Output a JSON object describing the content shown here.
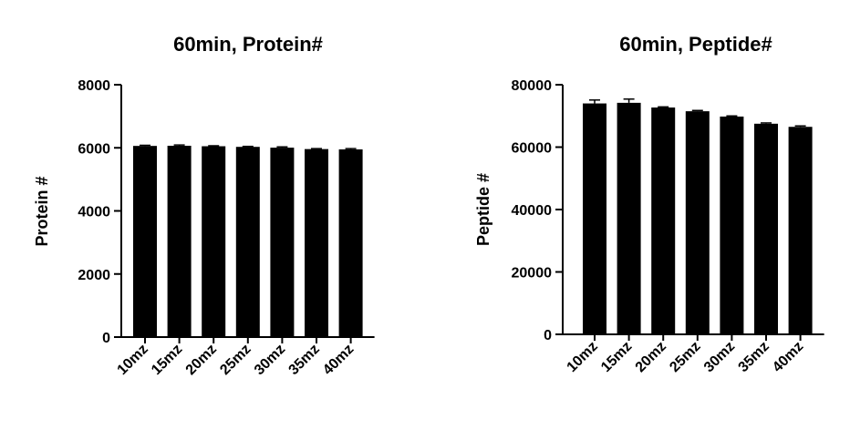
{
  "chart_data": [
    {
      "type": "bar",
      "title": "60min,  Protein#",
      "xlabel": "",
      "ylabel": "Protein #",
      "ylim": [
        0,
        8000
      ],
      "yticks": [
        0,
        2000,
        4000,
        6000,
        8000
      ],
      "categories": [
        "10mz",
        "15mz",
        "20mz",
        "25mz",
        "30mz",
        "35mz",
        "40mz"
      ],
      "values": [
        6060,
        6065,
        6050,
        6030,
        6005,
        5960,
        5950
      ],
      "errors": [
        20,
        25,
        15,
        15,
        25,
        15,
        25
      ],
      "bar_color": "#000000",
      "grid": false,
      "legend": "none"
    },
    {
      "type": "bar",
      "title": "60min,  Peptide#",
      "xlabel": "",
      "ylabel": "Peptide #",
      "ylim": [
        0,
        80000
      ],
      "yticks": [
        0,
        20000,
        40000,
        60000,
        80000
      ],
      "categories": [
        "10mz",
        "15mz",
        "20mz",
        "25mz",
        "30mz",
        "35mz",
        "40mz"
      ],
      "values": [
        74000,
        74200,
        72700,
        71500,
        69800,
        67500,
        66500
      ],
      "errors": [
        1100,
        1200,
        200,
        250,
        200,
        250,
        300
      ],
      "bar_color": "#000000",
      "grid": false,
      "legend": "none"
    }
  ]
}
